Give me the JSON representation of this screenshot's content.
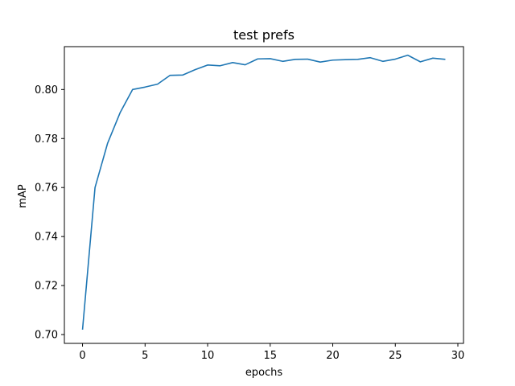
{
  "chart_data": {
    "type": "line",
    "title": "test prefs",
    "xlabel": "epochs",
    "ylabel": "mAP",
    "xlim": [
      -1.45,
      30.45
    ],
    "ylim": [
      0.6964,
      0.8175
    ],
    "xticks": [
      0,
      5,
      10,
      15,
      20,
      25,
      30
    ],
    "yticks": [
      0.7,
      0.72,
      0.74,
      0.76,
      0.78,
      0.8
    ],
    "grid": false,
    "series": [
      {
        "color": "#1f77b4",
        "x": [
          0,
          1,
          2,
          3,
          4,
          5,
          6,
          7,
          8,
          9,
          10,
          11,
          12,
          13,
          14,
          15,
          16,
          17,
          18,
          19,
          20,
          21,
          22,
          23,
          24,
          25,
          26,
          27,
          28,
          29
        ],
        "y": [
          0.702,
          0.76,
          0.778,
          0.7905,
          0.8,
          0.801,
          0.8022,
          0.8058,
          0.8059,
          0.8081,
          0.81,
          0.8097,
          0.811,
          0.8101,
          0.8125,
          0.8126,
          0.8115,
          0.8123,
          0.8124,
          0.8112,
          0.812,
          0.8122,
          0.8123,
          0.813,
          0.8115,
          0.8124,
          0.814,
          0.8113,
          0.8128,
          0.8123
        ]
      }
    ]
  }
}
